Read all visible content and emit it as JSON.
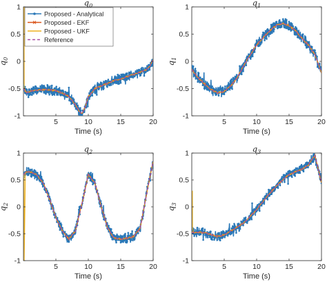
{
  "colors": {
    "analytical": "#2a78b8",
    "ekf": "#d95319",
    "ukf": "#edb120",
    "reference": "#a84ea6",
    "axes": "#262626"
  },
  "legend": {
    "placement": "top-left of first subplot",
    "entries": [
      "Proposed - Analytical",
      "Proposed - EKF",
      "Proposed - UKF",
      "Reference"
    ]
  },
  "chart_data": [
    {
      "type": "line",
      "title": "q0",
      "title_main": "q",
      "title_sub": "0",
      "xlabel": "Time (s)",
      "ylabel": "q0",
      "ylabel_main": "q",
      "ylabel_sub": "0",
      "xlim": [
        0,
        20
      ],
      "ylim": [
        -1,
        1
      ],
      "xticks": [
        "5",
        "10",
        "15",
        "20"
      ],
      "yticks": [
        "-1",
        "-0.5",
        "0",
        "0.5",
        "1"
      ],
      "grid": false,
      "legend": true,
      "noise_amplitude": 0.07,
      "series": [
        {
          "name": "Reference",
          "x": [
            0,
            0.5,
            1,
            2,
            3,
            4,
            5,
            6,
            7,
            8,
            8.5,
            9,
            9.5,
            10,
            11,
            12,
            13,
            14,
            15,
            16,
            17,
            18,
            19,
            19.5,
            20
          ],
          "y": [
            -0.5,
            -0.58,
            -0.55,
            -0.53,
            -0.52,
            -0.52,
            -0.54,
            -0.58,
            -0.64,
            -0.8,
            -0.9,
            -0.96,
            -0.85,
            -0.65,
            -0.5,
            -0.45,
            -0.4,
            -0.35,
            -0.32,
            -0.28,
            -0.24,
            -0.2,
            -0.15,
            -0.08,
            0.02
          ]
        }
      ],
      "initial_transient": [
        [
          0.1,
          1.0
        ],
        [
          0.12,
          -0.5
        ]
      ]
    },
    {
      "type": "line",
      "title": "q1",
      "title_main": "q",
      "title_sub": "1",
      "xlabel": "Time (s)",
      "ylabel": "q1",
      "ylabel_main": "q",
      "ylabel_sub": "1",
      "xlim": [
        0,
        20
      ],
      "ylim": [
        -1,
        1
      ],
      "xticks": [
        "5",
        "10",
        "15",
        "20"
      ],
      "yticks": [
        "-1",
        "-0.5",
        "0",
        "0.5",
        "1"
      ],
      "grid": false,
      "legend": false,
      "noise_amplitude": 0.08,
      "series": [
        {
          "name": "Reference",
          "x": [
            0,
            1,
            2,
            3,
            4,
            5,
            6,
            7,
            8,
            9,
            10,
            11,
            12,
            13,
            14,
            15,
            16,
            17,
            18,
            19,
            19.5,
            20
          ],
          "y": [
            -0.15,
            -0.3,
            -0.42,
            -0.52,
            -0.58,
            -0.55,
            -0.45,
            -0.3,
            -0.08,
            0.12,
            0.3,
            0.44,
            0.56,
            0.66,
            0.7,
            0.66,
            0.56,
            0.42,
            0.3,
            0.12,
            -0.05,
            -0.2
          ]
        }
      ],
      "initial_transient": []
    },
    {
      "type": "line",
      "title": "q2",
      "title_main": "q",
      "title_sub": "2",
      "xlabel": "Time (s)",
      "ylabel": "q2",
      "ylabel_main": "q",
      "ylabel_sub": "2",
      "xlim": [
        0,
        20
      ],
      "ylim": [
        -1,
        1
      ],
      "xticks": [
        "5",
        "10",
        "15",
        "20"
      ],
      "yticks": [
        "-1",
        "-0.5",
        "0",
        "0.5",
        "1"
      ],
      "grid": false,
      "legend": false,
      "noise_amplitude": 0.07,
      "series": [
        {
          "name": "Reference",
          "x": [
            0,
            0.5,
            1,
            2,
            3,
            4,
            5,
            6,
            7,
            8,
            9,
            10,
            11,
            12,
            13,
            14,
            15,
            16,
            17,
            18,
            19,
            20
          ],
          "y": [
            0.6,
            0.65,
            0.65,
            0.6,
            0.45,
            0.15,
            -0.2,
            -0.45,
            -0.6,
            -0.45,
            0.05,
            0.6,
            0.45,
            0.0,
            -0.4,
            -0.58,
            -0.6,
            -0.58,
            -0.55,
            -0.4,
            0.25,
            0.85
          ]
        }
      ],
      "initial_transient": [
        [
          0.1,
          0.6
        ],
        [
          0.12,
          -1.0
        ]
      ]
    },
    {
      "type": "line",
      "title": "q3",
      "title_main": "q",
      "title_sub": "3",
      "xlabel": "Time (s)",
      "ylabel": "q3",
      "ylabel_main": "q",
      "ylabel_sub": "3",
      "xlim": [
        0,
        20
      ],
      "ylim": [
        -1,
        1
      ],
      "xticks": [
        "5",
        "10",
        "15",
        "20"
      ],
      "yticks": [
        "-1",
        "-0.5",
        "0",
        "0.5",
        "1"
      ],
      "grid": false,
      "legend": false,
      "noise_amplitude": 0.07,
      "series": [
        {
          "name": "Reference",
          "x": [
            0,
            1,
            2,
            3,
            4,
            5,
            6,
            7,
            8,
            9,
            10,
            11,
            12,
            13,
            14,
            15,
            16,
            17,
            18,
            18.5,
            19,
            19.5,
            20
          ],
          "y": [
            -0.48,
            -0.47,
            -0.48,
            -0.52,
            -0.55,
            -0.52,
            -0.45,
            -0.38,
            -0.3,
            -0.18,
            -0.05,
            0.1,
            0.25,
            0.38,
            0.5,
            0.6,
            0.65,
            0.7,
            0.78,
            0.88,
            0.95,
            0.7,
            0.45
          ]
        }
      ],
      "initial_transient": [
        [
          0.1,
          0.3
        ],
        [
          0.12,
          -0.4
        ]
      ]
    }
  ]
}
